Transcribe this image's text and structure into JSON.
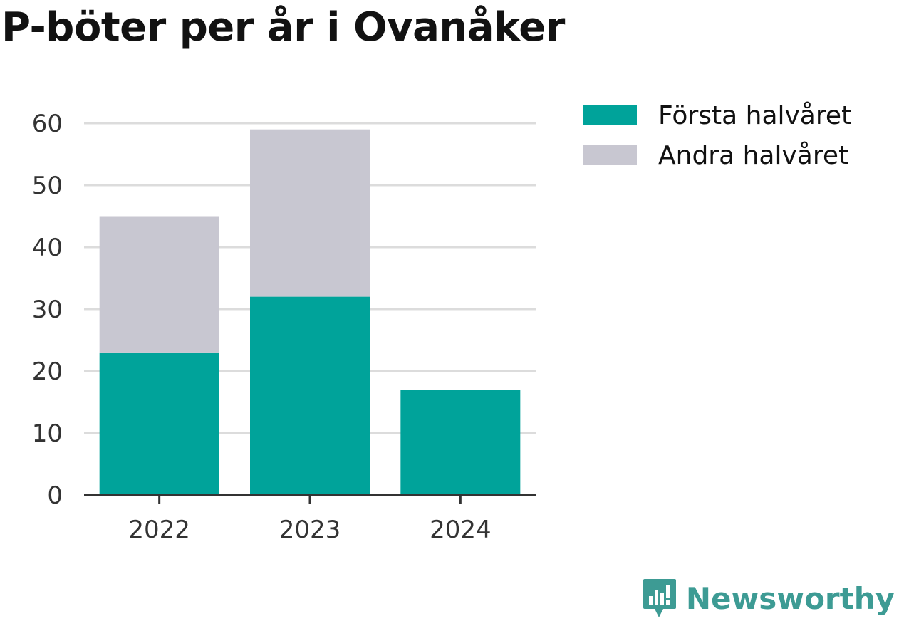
{
  "chart_data": {
    "type": "bar",
    "stacked": true,
    "title": "P-böter per år i Ovanåker",
    "categories": [
      "2022",
      "2023",
      "2024"
    ],
    "series": [
      {
        "name": "Första halvåret",
        "values": [
          23,
          32,
          17
        ],
        "color": "#00a39a"
      },
      {
        "name": "Andra halvåret",
        "values": [
          22,
          27,
          0
        ],
        "color": "#c8c7d1"
      }
    ],
    "ylim": [
      0,
      60
    ],
    "yticks": [
      0,
      10,
      20,
      30,
      40,
      50,
      60
    ],
    "grid": true,
    "legend": "top-right"
  },
  "brand": {
    "name": "Newsworthy",
    "color": "#3d9b94",
    "icon": "newsworthy-logo-icon"
  }
}
